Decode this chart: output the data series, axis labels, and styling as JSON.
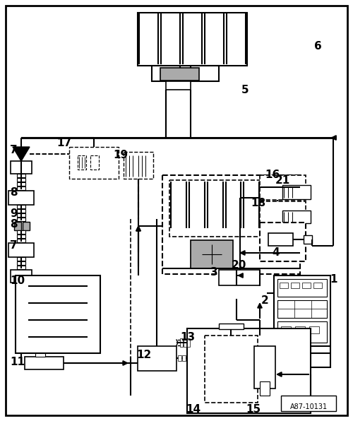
{
  "bg_color": "#ffffff",
  "line_color": "#000000",
  "gray_fill": "#aaaaaa",
  "figure_size": [
    5.0,
    5.96
  ],
  "dpi": 100,
  "watermark": "A87-10131"
}
